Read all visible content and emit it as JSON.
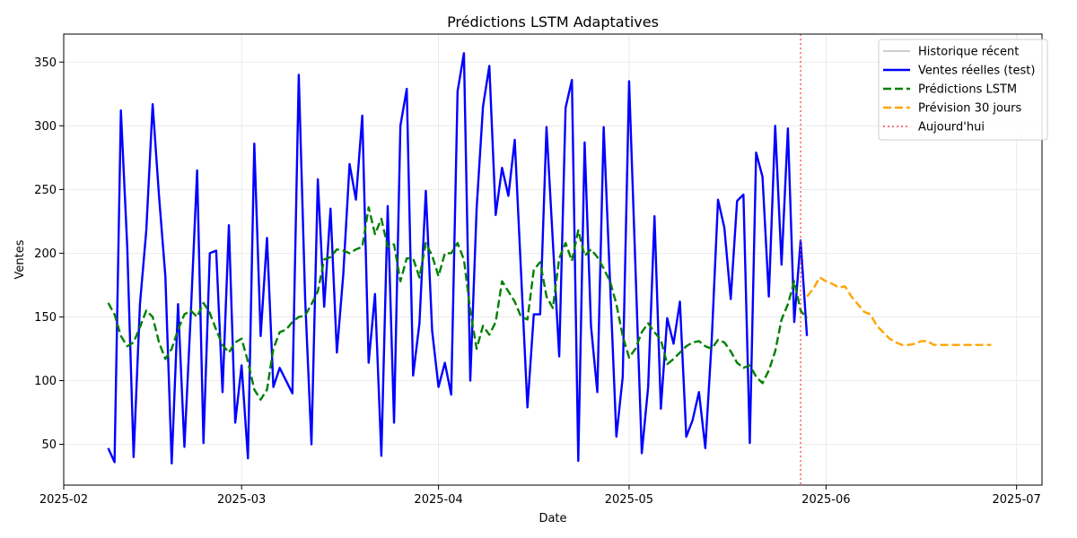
{
  "chart_data": {
    "type": "line",
    "title": "Prédictions LSTM Adaptatives",
    "xlabel": "Date",
    "ylabel": "Ventes",
    "x_axis": {
      "type": "date",
      "range": [
        "2025-02-01",
        "2025-07-05"
      ],
      "ticks": [
        "2025-02-01",
        "2025-03-01",
        "2025-04-01",
        "2025-05-01",
        "2025-06-01",
        "2025-07-01"
      ],
      "tick_labels": [
        "2025-02",
        "2025-03",
        "2025-04",
        "2025-05",
        "2025-06",
        "2025-07"
      ]
    },
    "y_axis": {
      "range": [
        18,
        372
      ],
      "ticks": [
        50,
        100,
        150,
        200,
        250,
        300,
        350
      ],
      "tick_labels": [
        "50",
        "100",
        "150",
        "200",
        "250",
        "300",
        "350"
      ]
    },
    "grid": true,
    "legend_position": "top-right",
    "today": "2025-05-28",
    "series": [
      {
        "name": "Historique récent",
        "color": "#bbbbbb",
        "style": "solid",
        "points": []
      },
      {
        "name": "Ventes réelles (test)",
        "color": "#0000ff",
        "style": "solid",
        "points": [
          [
            "2025-02-08",
            47
          ],
          [
            "2025-02-09",
            36
          ],
          [
            "2025-02-10",
            312
          ],
          [
            "2025-02-11",
            205
          ],
          [
            "2025-02-12",
            40
          ],
          [
            "2025-02-13",
            160
          ],
          [
            "2025-02-14",
            218
          ],
          [
            "2025-02-15",
            317
          ],
          [
            "2025-02-16",
            245
          ],
          [
            "2025-02-17",
            182
          ],
          [
            "2025-02-18",
            35
          ],
          [
            "2025-02-19",
            160
          ],
          [
            "2025-02-20",
            48
          ],
          [
            "2025-02-21",
            152
          ],
          [
            "2025-02-22",
            265
          ],
          [
            "2025-02-23",
            51
          ],
          [
            "2025-02-24",
            200
          ],
          [
            "2025-02-25",
            202
          ],
          [
            "2025-02-26",
            91
          ],
          [
            "2025-02-27",
            222
          ],
          [
            "2025-02-28",
            67
          ],
          [
            "2025-03-01",
            112
          ],
          [
            "2025-03-02",
            39
          ],
          [
            "2025-03-03",
            286
          ],
          [
            "2025-03-04",
            135
          ],
          [
            "2025-03-05",
            212
          ],
          [
            "2025-03-06",
            95
          ],
          [
            "2025-03-07",
            110
          ],
          [
            "2025-03-09",
            90
          ],
          [
            "2025-03-10",
            340
          ],
          [
            "2025-03-11",
            165
          ],
          [
            "2025-03-12",
            50
          ],
          [
            "2025-03-13",
            258
          ],
          [
            "2025-03-14",
            158
          ],
          [
            "2025-03-15",
            235
          ],
          [
            "2025-03-16",
            122
          ],
          [
            "2025-03-17",
            183
          ],
          [
            "2025-03-18",
            270
          ],
          [
            "2025-03-19",
            242
          ],
          [
            "2025-03-20",
            308
          ],
          [
            "2025-03-21",
            114
          ],
          [
            "2025-03-22",
            168
          ],
          [
            "2025-03-23",
            41
          ],
          [
            "2025-03-24",
            237
          ],
          [
            "2025-03-25",
            67
          ],
          [
            "2025-03-26",
            300
          ],
          [
            "2025-03-27",
            329
          ],
          [
            "2025-03-28",
            104
          ],
          [
            "2025-03-29",
            145
          ],
          [
            "2025-03-30",
            249
          ],
          [
            "2025-03-31",
            139
          ],
          [
            "2025-04-01",
            95
          ],
          [
            "2025-04-02",
            114
          ],
          [
            "2025-04-03",
            89
          ],
          [
            "2025-04-04",
            327
          ],
          [
            "2025-04-05",
            357
          ],
          [
            "2025-04-06",
            100
          ],
          [
            "2025-04-07",
            235
          ],
          [
            "2025-04-08",
            315
          ],
          [
            "2025-04-09",
            347
          ],
          [
            "2025-04-10",
            230
          ],
          [
            "2025-04-11",
            267
          ],
          [
            "2025-04-12",
            245
          ],
          [
            "2025-04-13",
            289
          ],
          [
            "2025-04-15",
            79
          ],
          [
            "2025-04-16",
            152
          ],
          [
            "2025-04-17",
            152
          ],
          [
            "2025-04-18",
            299
          ],
          [
            "2025-04-20",
            119
          ],
          [
            "2025-04-21",
            314
          ],
          [
            "2025-04-22",
            336
          ],
          [
            "2025-04-23",
            37
          ],
          [
            "2025-04-24",
            287
          ],
          [
            "2025-04-25",
            143
          ],
          [
            "2025-04-26",
            91
          ],
          [
            "2025-04-27",
            299
          ],
          [
            "2025-04-29",
            56
          ],
          [
            "2025-04-30",
            103
          ],
          [
            "2025-05-01",
            335
          ],
          [
            "2025-05-03",
            43
          ],
          [
            "2025-05-04",
            95
          ],
          [
            "2025-05-05",
            229
          ],
          [
            "2025-05-06",
            78
          ],
          [
            "2025-05-07",
            149
          ],
          [
            "2025-05-08",
            129
          ],
          [
            "2025-05-09",
            162
          ],
          [
            "2025-05-10",
            56
          ],
          [
            "2025-05-11",
            69
          ],
          [
            "2025-05-12",
            91
          ],
          [
            "2025-05-13",
            47
          ],
          [
            "2025-05-14",
            131
          ],
          [
            "2025-05-15",
            242
          ],
          [
            "2025-05-16",
            220
          ],
          [
            "2025-05-17",
            164
          ],
          [
            "2025-05-18",
            241
          ],
          [
            "2025-05-19",
            246
          ],
          [
            "2025-05-20",
            51
          ],
          [
            "2025-05-21",
            279
          ],
          [
            "2025-05-22",
            260
          ],
          [
            "2025-05-23",
            166
          ],
          [
            "2025-05-24",
            300
          ],
          [
            "2025-05-25",
            191
          ],
          [
            "2025-05-26",
            298
          ],
          [
            "2025-05-27",
            146
          ],
          [
            "2025-05-28",
            210
          ],
          [
            "2025-05-29",
            135
          ]
        ]
      },
      {
        "name": "Prédictions LSTM",
        "color": "#008000",
        "style": "dashed",
        "points": [
          [
            "2025-02-08",
            161
          ],
          [
            "2025-02-09",
            152
          ],
          [
            "2025-02-10",
            135
          ],
          [
            "2025-02-11",
            127
          ],
          [
            "2025-02-12",
            130
          ],
          [
            "2025-02-13",
            142
          ],
          [
            "2025-02-14",
            155
          ],
          [
            "2025-02-15",
            150
          ],
          [
            "2025-02-16",
            130
          ],
          [
            "2025-02-17",
            117
          ],
          [
            "2025-02-18",
            125
          ],
          [
            "2025-02-19",
            140
          ],
          [
            "2025-02-20",
            152
          ],
          [
            "2025-02-21",
            155
          ],
          [
            "2025-02-22",
            150
          ],
          [
            "2025-02-23",
            161
          ],
          [
            "2025-02-24",
            153
          ],
          [
            "2025-02-25",
            140
          ],
          [
            "2025-02-26",
            128
          ],
          [
            "2025-02-27",
            122
          ],
          [
            "2025-02-28",
            130
          ],
          [
            "2025-03-01",
            133
          ],
          [
            "2025-03-02",
            115
          ],
          [
            "2025-03-03",
            93
          ],
          [
            "2025-03-04",
            85
          ],
          [
            "2025-03-05",
            93
          ],
          [
            "2025-03-06",
            125
          ],
          [
            "2025-03-07",
            138
          ],
          [
            "2025-03-08",
            140
          ],
          [
            "2025-03-09",
            146
          ],
          [
            "2025-03-10",
            150
          ],
          [
            "2025-03-11",
            151
          ],
          [
            "2025-03-12",
            160
          ],
          [
            "2025-03-13",
            170
          ],
          [
            "2025-03-14",
            195
          ],
          [
            "2025-03-15",
            197
          ],
          [
            "2025-03-16",
            203
          ],
          [
            "2025-03-17",
            202
          ],
          [
            "2025-03-18",
            200
          ],
          [
            "2025-03-19",
            203
          ],
          [
            "2025-03-20",
            205
          ],
          [
            "2025-03-21",
            236
          ],
          [
            "2025-03-22",
            215
          ],
          [
            "2025-03-23",
            227
          ],
          [
            "2025-03-24",
            205
          ],
          [
            "2025-03-25",
            207
          ],
          [
            "2025-03-26",
            178
          ],
          [
            "2025-03-27",
            196
          ],
          [
            "2025-03-28",
            196
          ],
          [
            "2025-03-29",
            181
          ],
          [
            "2025-03-30",
            208
          ],
          [
            "2025-03-31",
            198
          ],
          [
            "2025-04-01",
            182
          ],
          [
            "2025-04-02",
            200
          ],
          [
            "2025-04-03",
            200
          ],
          [
            "2025-04-04",
            208
          ],
          [
            "2025-04-05",
            195
          ],
          [
            "2025-04-06",
            155
          ],
          [
            "2025-04-07",
            125
          ],
          [
            "2025-04-08",
            143
          ],
          [
            "2025-04-09",
            136
          ],
          [
            "2025-04-10",
            146
          ],
          [
            "2025-04-11",
            178
          ],
          [
            "2025-04-12",
            170
          ],
          [
            "2025-04-13",
            162
          ],
          [
            "2025-04-14",
            150
          ],
          [
            "2025-04-15",
            148
          ],
          [
            "2025-04-16",
            187
          ],
          [
            "2025-04-17",
            193
          ],
          [
            "2025-04-18",
            166
          ],
          [
            "2025-04-19",
            157
          ],
          [
            "2025-04-20",
            196
          ],
          [
            "2025-04-21",
            208
          ],
          [
            "2025-04-22",
            194
          ],
          [
            "2025-04-23",
            218
          ],
          [
            "2025-04-24",
            198
          ],
          [
            "2025-04-25",
            203
          ],
          [
            "2025-04-26",
            197
          ],
          [
            "2025-04-27",
            188
          ],
          [
            "2025-04-28",
            178
          ],
          [
            "2025-04-29",
            160
          ],
          [
            "2025-04-30",
            135
          ],
          [
            "2025-05-01",
            118
          ],
          [
            "2025-05-02",
            125
          ],
          [
            "2025-05-03",
            138
          ],
          [
            "2025-05-04",
            145
          ],
          [
            "2025-05-05",
            138
          ],
          [
            "2025-05-06",
            132
          ],
          [
            "2025-05-07",
            113
          ],
          [
            "2025-05-08",
            117
          ],
          [
            "2025-05-09",
            122
          ],
          [
            "2025-05-10",
            127
          ],
          [
            "2025-05-11",
            130
          ],
          [
            "2025-05-12",
            131
          ],
          [
            "2025-05-13",
            127
          ],
          [
            "2025-05-14",
            125
          ],
          [
            "2025-05-15",
            132
          ],
          [
            "2025-05-16",
            130
          ],
          [
            "2025-05-17",
            123
          ],
          [
            "2025-05-18",
            114
          ],
          [
            "2025-05-19",
            110
          ],
          [
            "2025-05-20",
            112
          ],
          [
            "2025-05-21",
            103
          ],
          [
            "2025-05-22",
            98
          ],
          [
            "2025-05-23",
            108
          ],
          [
            "2025-05-24",
            123
          ],
          [
            "2025-05-25",
            148
          ],
          [
            "2025-05-26",
            160
          ],
          [
            "2025-05-27",
            178
          ],
          [
            "2025-05-28",
            155
          ],
          [
            "2025-05-29",
            149
          ]
        ]
      },
      {
        "name": "Prévision 30 jours",
        "color": "#ffa500",
        "style": "dashed",
        "points": [
          [
            "2025-05-29",
            166
          ],
          [
            "2025-05-30",
            172
          ],
          [
            "2025-05-31",
            181
          ],
          [
            "2025-06-01",
            178
          ],
          [
            "2025-06-02",
            176
          ],
          [
            "2025-06-03",
            173
          ],
          [
            "2025-06-04",
            174
          ],
          [
            "2025-06-05",
            166
          ],
          [
            "2025-06-06",
            160
          ],
          [
            "2025-06-07",
            154
          ],
          [
            "2025-06-08",
            152
          ],
          [
            "2025-06-09",
            143
          ],
          [
            "2025-06-10",
            138
          ],
          [
            "2025-06-11",
            133
          ],
          [
            "2025-06-12",
            130
          ],
          [
            "2025-06-13",
            128
          ],
          [
            "2025-06-14",
            128
          ],
          [
            "2025-06-15",
            129
          ],
          [
            "2025-06-16",
            131
          ],
          [
            "2025-06-17",
            131
          ],
          [
            "2025-06-18",
            128
          ],
          [
            "2025-06-19",
            128
          ],
          [
            "2025-06-20",
            128
          ],
          [
            "2025-06-21",
            128
          ],
          [
            "2025-06-22",
            128
          ],
          [
            "2025-06-23",
            128
          ],
          [
            "2025-06-24",
            128
          ],
          [
            "2025-06-25",
            128
          ],
          [
            "2025-06-26",
            128
          ],
          [
            "2025-06-27",
            128
          ]
        ]
      }
    ],
    "reference_line": {
      "name": "Aujourd'hui",
      "color": "#ff4444",
      "style": "dotted"
    }
  }
}
